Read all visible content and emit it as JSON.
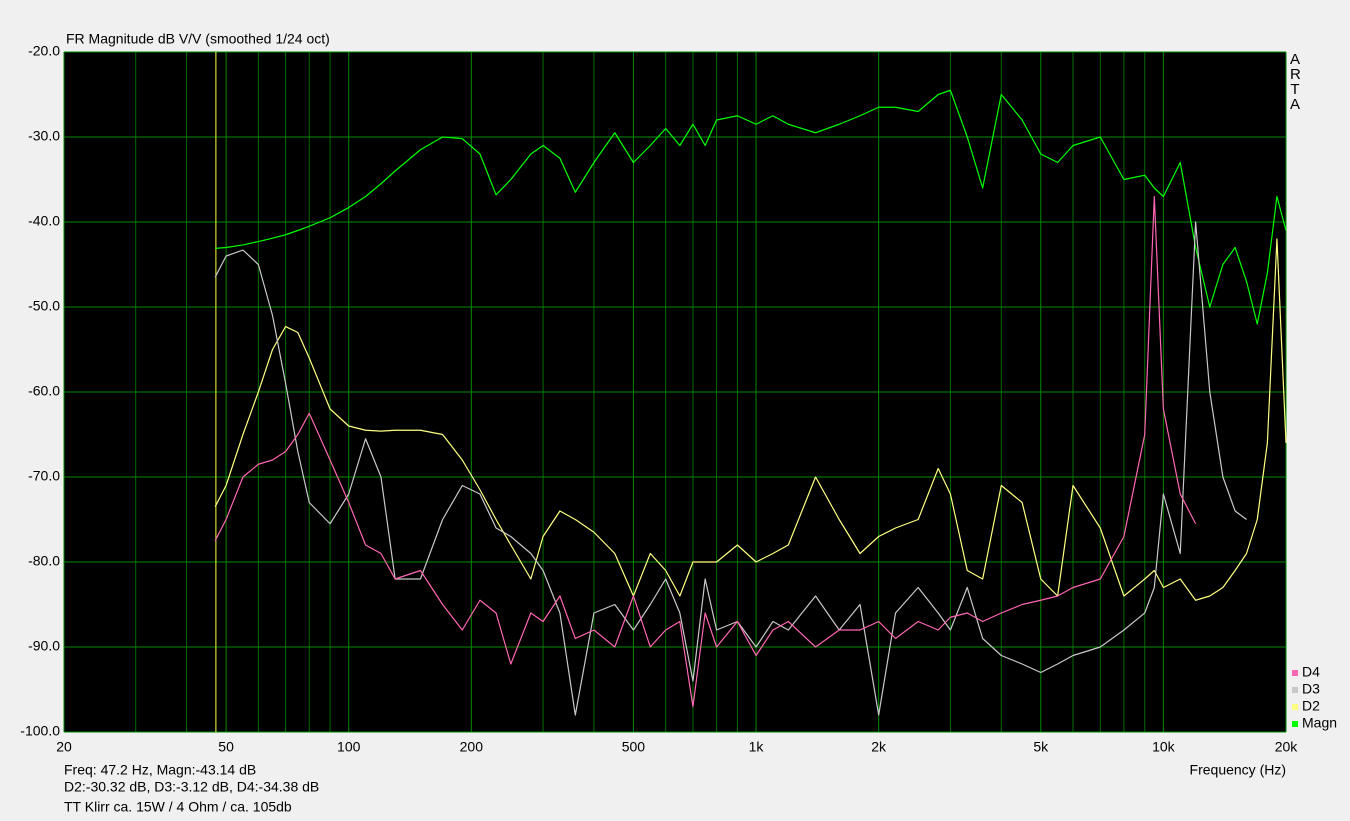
{
  "chart_data": {
    "type": "line",
    "title": "FR Magnitude dB V/V (smoothed 1/24 oct)",
    "xlabel": "Frequency (Hz)",
    "logo": "ARTA",
    "annotations": [
      "Freq: 47.2 Hz, Magn:-43.14 dB",
      "D2:-30.32 dB, D3:-3.12 dB, D4:-34.38 dB",
      "TT Klirr ca. 15W / 4 Ohm / ca. 105db"
    ],
    "cursor_x": 47.2,
    "cursor_color": "#ffff40",
    "xscale": "log",
    "xlim": [
      20,
      20000
    ],
    "ylim": [
      -100,
      -20
    ],
    "xticks": [
      20,
      50,
      100,
      200,
      500,
      {
        "value": 1000,
        "label": "1k"
      },
      {
        "value": 2000,
        "label": "2k"
      },
      {
        "value": 5000,
        "label": "5k"
      },
      {
        "value": 10000,
        "label": "10k"
      },
      {
        "value": 20000,
        "label": "20k"
      }
    ],
    "xgrid_minor": [
      30,
      40,
      60,
      70,
      80,
      90,
      300,
      400,
      600,
      700,
      800,
      900,
      3000,
      4000,
      6000,
      7000,
      8000,
      9000
    ],
    "yticks": [
      {
        "value": -20,
        "label": "-20.0"
      },
      {
        "value": -30,
        "label": "-30.0"
      },
      {
        "value": -40,
        "label": "-40.0"
      },
      {
        "value": -50,
        "label": "-50.0"
      },
      {
        "value": -60,
        "label": "-60.0"
      },
      {
        "value": -70,
        "label": "-70.0"
      },
      {
        "value": -80,
        "label": "-80.0"
      },
      {
        "value": -90,
        "label": "-90.0"
      },
      {
        "value": -100,
        "label": "-100.0"
      }
    ],
    "grid": true,
    "grid_color": "#008a00",
    "legend": "bottom-right",
    "x": [
      47,
      50,
      55,
      60,
      65,
      70,
      75,
      80,
      90,
      100,
      110,
      120,
      130,
      150,
      170,
      190,
      210,
      230,
      250,
      280,
      300,
      330,
      360,
      400,
      450,
      500,
      550,
      600,
      650,
      700,
      750,
      800,
      900,
      1000,
      1100,
      1200,
      1400,
      1600,
      1800,
      2000,
      2200,
      2500,
      2800,
      3000,
      3300,
      3600,
      4000,
      4500,
      5000,
      5500,
      6000,
      7000,
      8000,
      9000,
      9500,
      10000,
      11000,
      12000,
      13000,
      14000,
      15000,
      16000,
      17000,
      18000,
      19000,
      20000
    ],
    "series": [
      {
        "name": "D4",
        "color": "#ff66b3",
        "values": [
          -77.5,
          -75,
          -70,
          -68.5,
          -68,
          -67,
          -65,
          -62.5,
          -68,
          -73,
          -78,
          -79,
          -82,
          -81,
          -85,
          -88,
          -84.5,
          -86,
          -92,
          -86,
          -87,
          -84,
          -89,
          -88,
          -90,
          -84,
          -90,
          -88,
          -87,
          -97,
          -86,
          -90,
          -87,
          -91,
          -88,
          -87,
          -90,
          -88,
          -88,
          -87,
          -89,
          -87,
          -88,
          -86.5,
          -86,
          -87,
          -86,
          -85,
          -84.5,
          -84,
          -83,
          -82,
          -77,
          -65,
          -37,
          -62,
          -72,
          -75.5,
          null,
          null,
          null,
          null,
          null,
          null,
          null,
          null
        ]
      },
      {
        "name": "D3",
        "color": "#c8c8c8",
        "values": [
          -46.5,
          -44,
          -43.3,
          -45,
          -51,
          -59,
          -67,
          -73,
          -75.5,
          -72,
          -65.5,
          -70,
          -82,
          -82,
          -75,
          -71,
          -72,
          -76,
          -77,
          -79,
          -81,
          -86,
          -98,
          -86,
          -85,
          -88,
          -85,
          -82,
          -86,
          -94,
          -82,
          -88,
          -87,
          -90,
          -87,
          -88,
          -84,
          -88,
          -85,
          -98,
          -86,
          -83,
          -86,
          -88,
          -83,
          -89,
          -91,
          -92,
          -93,
          -92,
          -91,
          -90,
          -88,
          -86,
          -83,
          -72,
          -79,
          -40,
          -60,
          -70,
          -74,
          -75,
          null,
          null,
          null,
          null
        ]
      },
      {
        "name": "D2",
        "color": "#ffff80",
        "values": [
          -73.5,
          -71,
          -65,
          -60,
          -55,
          -52.3,
          -53,
          -56,
          -62,
          -64,
          -64.5,
          -64.6,
          -64.5,
          -64.5,
          -65,
          -68,
          -71.5,
          -75,
          -78,
          -82,
          -77,
          -74,
          -75,
          -76.5,
          -79,
          -84,
          -79,
          -81,
          -84,
          -80,
          -80,
          -80,
          -78,
          -80,
          -79,
          -78,
          -70,
          -75,
          -79,
          -77,
          -76,
          -75,
          -69,
          -72,
          -81,
          -82,
          -71,
          -73,
          -82,
          -84,
          -71,
          -76,
          -84,
          -82,
          -81,
          -83,
          -82,
          -84.5,
          -84,
          -83,
          -81,
          -79,
          -75,
          -66,
          -42,
          -66
        ]
      },
      {
        "name": "Magn",
        "color": "#00ff00",
        "values": [
          -43.1,
          -43,
          -42.7,
          -42.3,
          -41.9,
          -41.5,
          -41,
          -40.5,
          -39.5,
          -38.3,
          -37,
          -35.5,
          -34,
          -31.5,
          -30,
          -30.2,
          -32,
          -36.8,
          -35,
          -32,
          -31,
          -32.5,
          -36.5,
          -33,
          -29.5,
          -33,
          -31,
          -29,
          -31,
          -28.5,
          -31,
          -28,
          -27.5,
          -28.5,
          -27.5,
          -28.5,
          -29.5,
          -28.5,
          -27.5,
          -26.5,
          -26.5,
          -27,
          -25,
          -24.5,
          -30,
          -36,
          -25,
          -28,
          -32,
          -33,
          -31,
          -30,
          -35,
          -34.5,
          -36,
          -37,
          -33,
          -43,
          -50,
          -45,
          -43,
          -47,
          -52,
          -46,
          -37,
          -41
        ]
      }
    ]
  }
}
